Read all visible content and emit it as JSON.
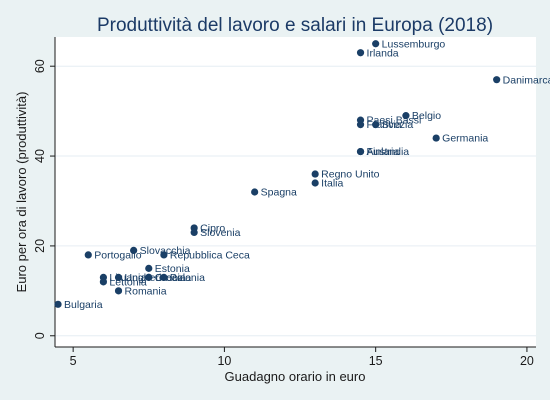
{
  "chart_data": {
    "type": "scatter",
    "title": "Produttività del lavoro e salari in Europa (2018)",
    "xlabel": "Guadagno orario in euro",
    "ylabel": "Euro per ora di lavoro (produttività)",
    "xlim": [
      4.4,
      20.3
    ],
    "ylim": [
      -2.5,
      66.5
    ],
    "xticks": [
      5,
      10,
      15,
      20
    ],
    "yticks": [
      0,
      20,
      40,
      60
    ],
    "grid": true,
    "legend": "none",
    "marker_color": "#1a3f66",
    "gridline_color": "#e6eef3",
    "points": [
      {
        "label": "Lussemburgo",
        "x": 15.0,
        "y": 65
      },
      {
        "label": "Irlanda",
        "x": 14.5,
        "y": 63
      },
      {
        "label": "Danimarca",
        "x": 19.0,
        "y": 57
      },
      {
        "label": "Belgio",
        "x": 16.0,
        "y": 49
      },
      {
        "label": "Paesi Bassi",
        "x": 14.5,
        "y": 48
      },
      {
        "label": "Francia",
        "x": 14.5,
        "y": 47
      },
      {
        "label": "Svezia",
        "x": 15.0,
        "y": 47
      },
      {
        "label": "Germania",
        "x": 17.0,
        "y": 44
      },
      {
        "label": "Finlandia",
        "x": 14.5,
        "y": 41
      },
      {
        "label": "Austria",
        "x": 14.5,
        "y": 41
      },
      {
        "label": "Regno Unito",
        "x": 13.0,
        "y": 36
      },
      {
        "label": "Italia",
        "x": 13.0,
        "y": 34
      },
      {
        "label": "Spagna",
        "x": 11.0,
        "y": 32
      },
      {
        "label": "Cipro",
        "x": 9.0,
        "y": 24
      },
      {
        "label": "Slovenia",
        "x": 9.0,
        "y": 23
      },
      {
        "label": "Slovacchia",
        "x": 7.0,
        "y": 19
      },
      {
        "label": "Portogallo",
        "x": 5.5,
        "y": 18
      },
      {
        "label": "Repubblica Ceca",
        "x": 8.0,
        "y": 18
      },
      {
        "label": "Estonia",
        "x": 7.5,
        "y": 15
      },
      {
        "label": "Lituania",
        "x": 6.0,
        "y": 13
      },
      {
        "label": "Ungheria",
        "x": 6.5,
        "y": 13
      },
      {
        "label": "Croazia",
        "x": 7.5,
        "y": 13
      },
      {
        "label": "Grecia",
        "x": 7.5,
        "y": 13
      },
      {
        "label": "Polonia",
        "x": 8.0,
        "y": 13
      },
      {
        "label": "Lettonia",
        "x": 6.0,
        "y": 12
      },
      {
        "label": "Romania",
        "x": 6.5,
        "y": 10
      },
      {
        "label": "Bulgaria",
        "x": 4.5,
        "y": 7
      }
    ]
  }
}
